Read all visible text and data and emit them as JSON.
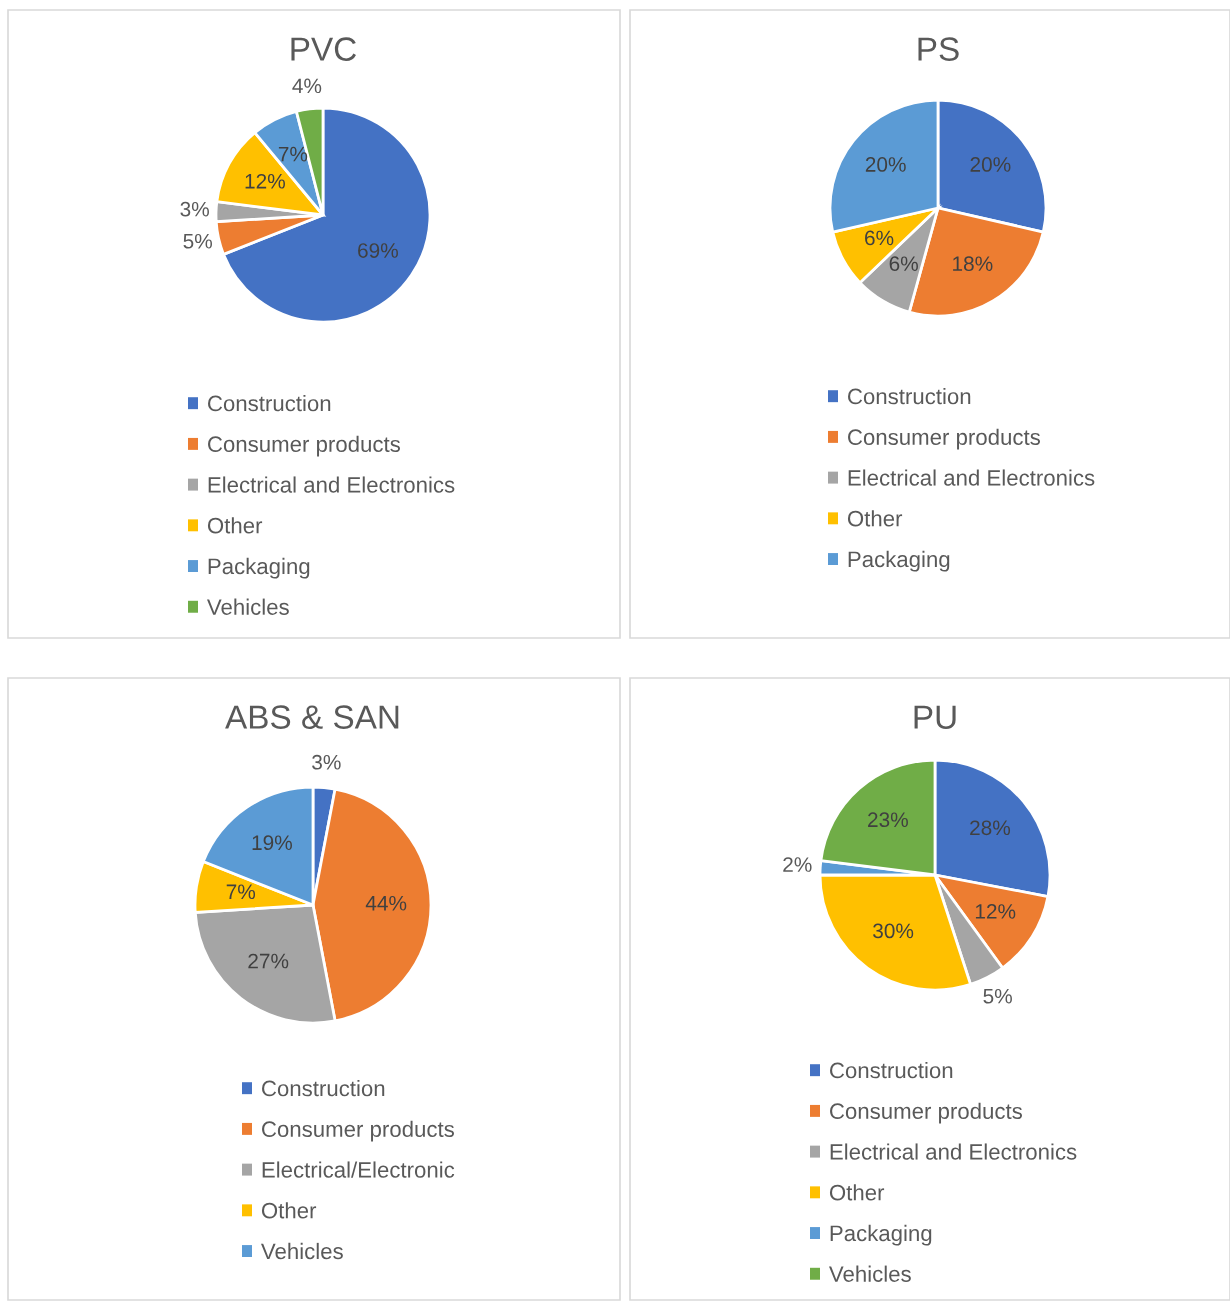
{
  "chart_data": [
    {
      "type": "pie",
      "title": "PVC",
      "categories": [
        "Construction",
        "Consumer products",
        "Electrical and Electronics",
        "Other",
        "Packaging",
        "Vehicles"
      ],
      "values": [
        69,
        5,
        3,
        12,
        7,
        4
      ],
      "value_labels": [
        "69%",
        "5%",
        "3%",
        "12%",
        "7%",
        "4%"
      ],
      "colors": [
        "#4472c4",
        "#ed7d31",
        "#a5a5a5",
        "#ffc000",
        "#5b9bd5",
        "#70ad47"
      ],
      "legend": "bottom"
    },
    {
      "type": "pie",
      "title": "PS",
      "categories": [
        "Construction",
        "Consumer products",
        "Electrical and Electronics",
        "Other",
        "Packaging"
      ],
      "values": [
        20,
        18,
        6,
        6,
        20
      ],
      "value_labels": [
        "20%",
        "18%",
        "6%",
        "6%",
        "20%"
      ],
      "colors": [
        "#4472c4",
        "#ed7d31",
        "#a5a5a5",
        "#ffc000",
        "#5b9bd5"
      ],
      "legend": "bottom"
    },
    {
      "type": "pie",
      "title": "ABS & SAN",
      "categories": [
        "Construction",
        "Consumer products",
        "Electrical/Electronic",
        "Other",
        "Vehicles"
      ],
      "values": [
        3,
        44,
        27,
        7,
        19
      ],
      "value_labels": [
        "3%",
        "44%",
        "27%",
        "7%",
        "19%"
      ],
      "colors": [
        "#4472c4",
        "#ed7d31",
        "#a5a5a5",
        "#ffc000",
        "#5b9bd5"
      ],
      "legend": "bottom"
    },
    {
      "type": "pie",
      "title": "PU",
      "categories": [
        "Construction",
        "Consumer products",
        "Electrical and Electronics",
        "Other",
        "Packaging",
        "Vehicles"
      ],
      "values": [
        28,
        12,
        5,
        30,
        2,
        23
      ],
      "value_labels": [
        "28%",
        "12%",
        "5%",
        "30%",
        "2%",
        "23%"
      ],
      "colors": [
        "#4472c4",
        "#ed7d31",
        "#a5a5a5",
        "#ffc000",
        "#5b9bd5",
        "#70ad47"
      ],
      "legend": "bottom"
    }
  ]
}
